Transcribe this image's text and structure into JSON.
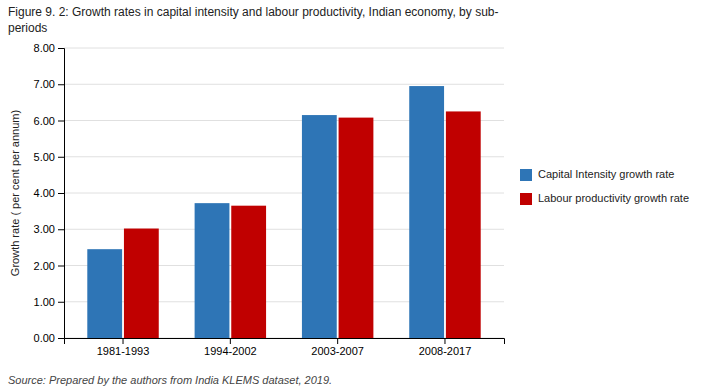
{
  "chart_data": {
    "type": "bar",
    "title": [
      "Figure 9. 2: Growth rates in capital intensity and labour productivity, Indian economy, by sub-",
      "periods"
    ],
    "y_label": "Growth rate ( per cent per annum)",
    "source": "Source: Prepared by the authors from India KLEMS dataset, 2019.",
    "categories": [
      "1981-1993",
      "1994-2002",
      "2003-2007",
      "2008-2017"
    ],
    "series": [
      {
        "name": "Capital Intensity growth rate",
        "color": "#2E75B6",
        "values": [
          2.45,
          3.72,
          6.15,
          6.95
        ]
      },
      {
        "name": "Labour productivity growth rate",
        "color": "#C00000",
        "values": [
          3.02,
          3.65,
          6.08,
          6.25
        ]
      }
    ],
    "ylim": [
      0,
      8.0
    ],
    "yticks": [
      {
        "value": 0.0,
        "label": "0.00"
      },
      {
        "value": 1.0,
        "label": "1.00"
      },
      {
        "value": 2.0,
        "label": "2.00"
      },
      {
        "value": 3.0,
        "label": "3.00"
      },
      {
        "value": 4.0,
        "label": "4.00"
      },
      {
        "value": 5.0,
        "label": "5.00"
      },
      {
        "value": 6.0,
        "label": "6.00"
      },
      {
        "value": 7.0,
        "label": "7.00"
      },
      {
        "value": 8.0,
        "label": "8.00"
      }
    ],
    "grid": true,
    "legend": "right"
  }
}
